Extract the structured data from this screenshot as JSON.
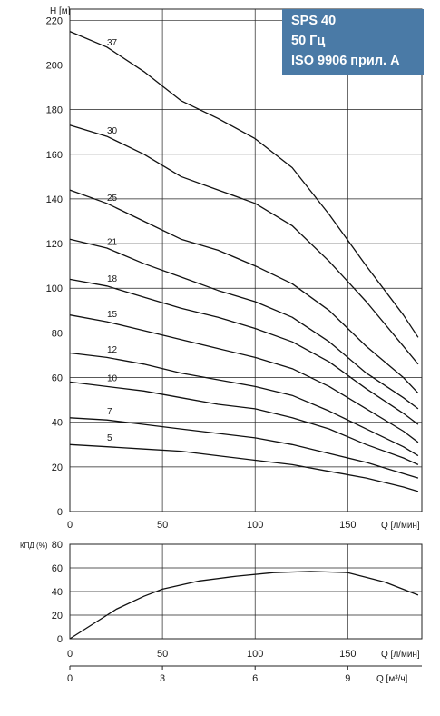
{
  "chart_data": [
    {
      "type": "line",
      "ylabel": "H [м]",
      "xlabel": "Q [л/мин]",
      "xlim": [
        0,
        190
      ],
      "ylim": [
        0,
        225
      ],
      "xticks": [
        0,
        50,
        100,
        150
      ],
      "yticks": [
        0,
        20,
        40,
        60,
        80,
        100,
        120,
        140,
        160,
        180,
        200,
        220
      ],
      "grid": true,
      "series": [
        {
          "name": "37",
          "x": [
            0,
            20,
            40,
            60,
            80,
            100,
            120,
            140,
            160,
            180,
            188
          ],
          "y": [
            215,
            208,
            197,
            184,
            176,
            167,
            154,
            133,
            110,
            88,
            78
          ]
        },
        {
          "name": "30",
          "x": [
            0,
            20,
            40,
            60,
            80,
            100,
            120,
            140,
            160,
            180,
            188
          ],
          "y": [
            173,
            168,
            160,
            150,
            144,
            138,
            128,
            112,
            94,
            74,
            66
          ]
        },
        {
          "name": "25",
          "x": [
            0,
            20,
            40,
            60,
            80,
            100,
            120,
            140,
            160,
            180,
            188
          ],
          "y": [
            144,
            138,
            130,
            122,
            117,
            110,
            102,
            90,
            74,
            60,
            53
          ]
        },
        {
          "name": "21",
          "x": [
            0,
            20,
            40,
            60,
            80,
            100,
            120,
            140,
            160,
            180,
            188
          ],
          "y": [
            122,
            118,
            111,
            105,
            99,
            94,
            87,
            76,
            62,
            51,
            46
          ]
        },
        {
          "name": "18",
          "x": [
            0,
            20,
            40,
            60,
            80,
            100,
            120,
            140,
            160,
            180,
            188
          ],
          "y": [
            104,
            101,
            96,
            91,
            87,
            82,
            76,
            67,
            55,
            44,
            39
          ]
        },
        {
          "name": "15",
          "x": [
            0,
            20,
            40,
            60,
            80,
            100,
            120,
            140,
            160,
            180,
            188
          ],
          "y": [
            88,
            85,
            81,
            77,
            73,
            69,
            64,
            56,
            46,
            36,
            31
          ]
        },
        {
          "name": "12",
          "x": [
            0,
            20,
            40,
            60,
            80,
            100,
            120,
            140,
            160,
            180,
            188
          ],
          "y": [
            71,
            69,
            66,
            62,
            59,
            56,
            52,
            45,
            37,
            29,
            25
          ]
        },
        {
          "name": "10",
          "x": [
            0,
            20,
            40,
            60,
            80,
            100,
            120,
            140,
            160,
            180,
            188
          ],
          "y": [
            58,
            56,
            54,
            51,
            48,
            46,
            42,
            37,
            30,
            24,
            21
          ]
        },
        {
          "name": "7",
          "x": [
            0,
            20,
            40,
            60,
            80,
            100,
            120,
            140,
            160,
            180,
            188
          ],
          "y": [
            42,
            41,
            39,
            37,
            35,
            33,
            30,
            26,
            22,
            17,
            15
          ]
        },
        {
          "name": "5",
          "x": [
            0,
            20,
            40,
            60,
            80,
            100,
            120,
            140,
            160,
            180,
            188
          ],
          "y": [
            30,
            29,
            28,
            27,
            25,
            23,
            21,
            18,
            15,
            11,
            9
          ]
        }
      ]
    },
    {
      "type": "line",
      "ylabel": "КПД (%)",
      "xlabel": "Q [л/мин]",
      "xlim": [
        0,
        190
      ],
      "ylim": [
        0,
        80
      ],
      "xticks": [
        0,
        50,
        100,
        150
      ],
      "yticks": [
        0,
        20,
        40,
        60,
        80
      ],
      "grid": true,
      "x2label": "Q [м³/ч]",
      "x2ticks": [
        0,
        3,
        6,
        9
      ],
      "series": [
        {
          "name": "",
          "x": [
            0,
            10,
            25,
            40,
            50,
            70,
            90,
            110,
            130,
            150,
            170,
            188
          ],
          "y": [
            0,
            10,
            25,
            36,
            42,
            49,
            53,
            56,
            57,
            56,
            48,
            37
          ]
        }
      ]
    }
  ],
  "info_box": {
    "lines": [
      "SPS 40",
      "50 Гц",
      "ISO 9906 прил. A"
    ],
    "bg": "#4a7aa6"
  }
}
